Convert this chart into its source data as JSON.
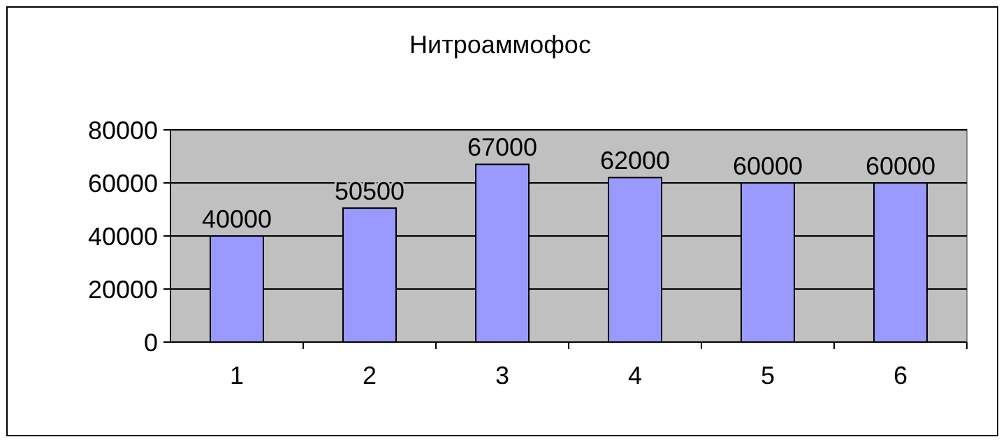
{
  "chart_data": {
    "type": "bar",
    "title": "Нитроаммофос",
    "categories": [
      "1",
      "2",
      "3",
      "4",
      "5",
      "6"
    ],
    "values": [
      40000,
      50500,
      67000,
      62000,
      60000,
      60000
    ],
    "color": "#9999ff",
    "ylim": [
      0,
      80000
    ],
    "yticks": [
      0,
      20000,
      40000,
      60000,
      80000
    ],
    "grid": "y",
    "data_labels": true
  }
}
